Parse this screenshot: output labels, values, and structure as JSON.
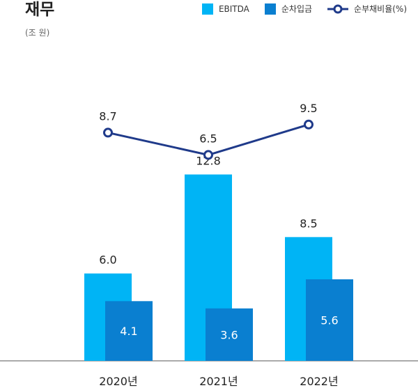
{
  "title": "재무",
  "unit": "(조 원)",
  "legend": [
    {
      "label": "EBITDA",
      "kind": "bar",
      "color": "#00b4f5"
    },
    {
      "label": "순차입금",
      "kind": "bar",
      "color": "#0a7fd0"
    },
    {
      "label": "순부채비율(%)",
      "kind": "line",
      "color": "#1f3a8a"
    }
  ],
  "chart_data": {
    "type": "bar",
    "categories": [
      "2020년",
      "2021년",
      "2022년"
    ],
    "series": [
      {
        "name": "EBITDA",
        "type": "bar",
        "values": [
          6.0,
          12.8,
          8.5
        ],
        "labels": [
          "6.0",
          "12.8",
          "8.5"
        ],
        "color": "#00b4f5"
      },
      {
        "name": "순차입금",
        "type": "bar",
        "values": [
          4.1,
          3.6,
          5.6
        ],
        "labels": [
          "4.1",
          "3.6",
          "5.6"
        ],
        "color": "#0a7fd0"
      },
      {
        "name": "순부채비율(%)",
        "type": "line",
        "values": [
          8.7,
          6.5,
          9.5
        ],
        "labels": [
          "8.7",
          "6.5",
          "9.5"
        ],
        "color": "#1f3a8a"
      }
    ],
    "ylabel": "(조 원)",
    "grid": false,
    "legend_position": "top-right"
  }
}
